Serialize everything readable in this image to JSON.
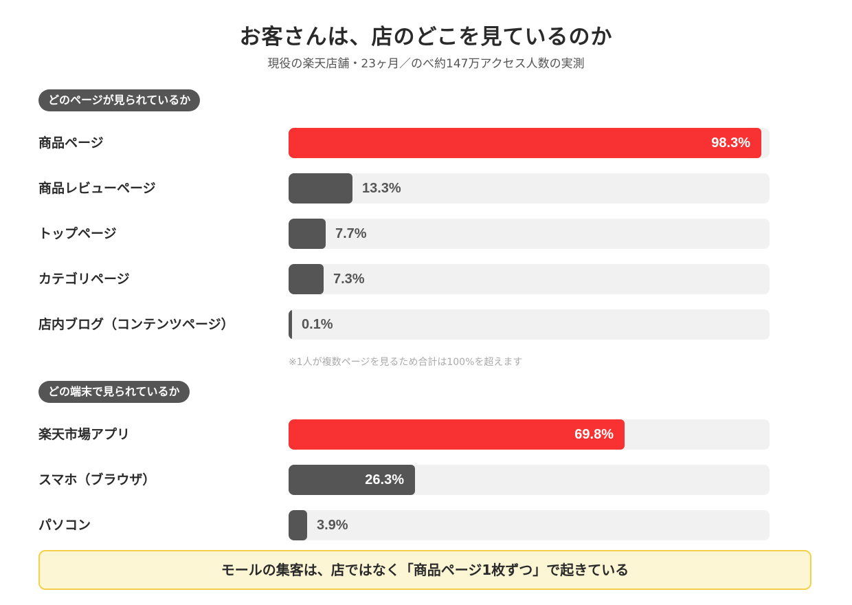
{
  "title": "お客さんは、店のどこを見ているのか",
  "subtitle": "現役の楽天店舗・23ヶ月／のべ約147万アクセス人数の実測",
  "colors": {
    "highlight": "#f83232",
    "bar": "#555555",
    "track": "#f1f1f1"
  },
  "chart_data": [
    {
      "type": "bar",
      "orientation": "horizontal",
      "section_label": "どのページが見られているか",
      "categories": [
        "商品ページ",
        "商品レビューページ",
        "トップページ",
        "カテゴリページ",
        "店内ブログ（コンテンツページ）"
      ],
      "values": [
        98.3,
        13.3,
        7.7,
        7.3,
        0.1
      ],
      "value_labels": [
        "98.3%",
        "13.3%",
        "7.7%",
        "7.3%",
        "0.1%"
      ],
      "highlight_index": 0,
      "xlim": [
        0,
        100
      ],
      "note": "※1人が複数ページを見るため合計は100%を超えます"
    },
    {
      "type": "bar",
      "orientation": "horizontal",
      "section_label": "どの端末で見られているか",
      "categories": [
        "楽天市場アプリ",
        "スマホ（ブラウザ）",
        "パソコン"
      ],
      "values": [
        69.8,
        26.3,
        3.9
      ],
      "value_labels": [
        "69.8%",
        "26.3%",
        "3.9%"
      ],
      "highlight_index": 0,
      "xlim": [
        0,
        100
      ]
    }
  ],
  "callout": "モールの集客は、店ではなく「商品ページ1枚ずつ」で起きている"
}
